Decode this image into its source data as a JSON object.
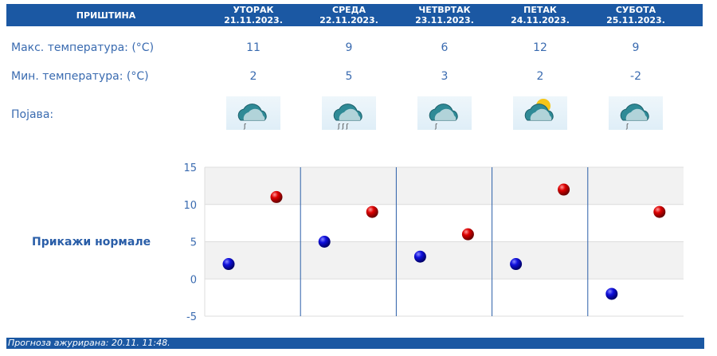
{
  "header": {
    "city": "ПРИШТИНА"
  },
  "days": [
    {
      "name": "УТОРАК",
      "date": "21.11.2023.",
      "max": "11",
      "min": "2",
      "icon": "cloud-light-rain-icon"
    },
    {
      "name": "СРЕДА",
      "date": "22.11.2023.",
      "max": "9",
      "min": "5",
      "icon": "cloud-rain-icon"
    },
    {
      "name": "ЧЕТВРТАК",
      "date": "23.11.2023.",
      "max": "6",
      "min": "3",
      "icon": "cloud-light-rain-icon"
    },
    {
      "name": "ПЕТАК",
      "date": "24.11.2023.",
      "max": "12",
      "min": "2",
      "icon": "sun-behind-clouds-icon"
    },
    {
      "name": "СУБОТА",
      "date": "25.11.2023.",
      "max": "9",
      "min": "-2",
      "icon": "cloud-light-rain-icon"
    }
  ],
  "labels": {
    "max": "Макс. температура: (°C)",
    "min": "Мин. температура: (°C)",
    "phenomenon": "Појава:"
  },
  "show_normals": "Прикажи нормале",
  "footer": "Прогноза ажурирана:  20.11. 11:48.",
  "chart_data": {
    "type": "scatter",
    "ylim": [
      -5,
      15
    ],
    "yticks": [
      "15",
      "10",
      "5",
      "0",
      "-5"
    ],
    "categories": [
      "21.11.2023.",
      "22.11.2023.",
      "23.11.2023.",
      "24.11.2023.",
      "25.11.2023."
    ],
    "series": [
      {
        "values": [
          2,
          5,
          3,
          2,
          -2
        ],
        "color": "#0000cc"
      },
      {
        "values": [
          11,
          9,
          6,
          12,
          9
        ],
        "color": "#d00000"
      }
    ]
  },
  "colors": {
    "header": "#1b58a3",
    "text": "#2a5ea8"
  }
}
